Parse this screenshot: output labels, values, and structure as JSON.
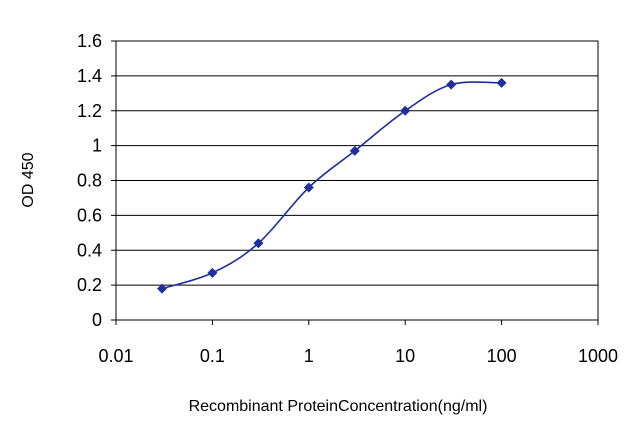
{
  "chart_data": {
    "type": "line",
    "title": "",
    "xlabel": "Recombinant ProteinConcentration(ng/ml)",
    "ylabel": "OD 450",
    "x_scale": "log",
    "xlim": [
      0.01,
      1000
    ],
    "ylim": [
      0,
      1.6
    ],
    "x_ticks": [
      0.01,
      0.1,
      1,
      10,
      100,
      1000
    ],
    "x_tick_labels": [
      "0.01",
      "0.1",
      "1",
      "10",
      "100",
      "1000"
    ],
    "y_ticks": [
      0,
      0.2,
      0.4,
      0.6,
      0.8,
      1,
      1.2,
      1.4,
      1.6
    ],
    "y_tick_labels": [
      "0",
      "0.2",
      "0.4",
      "0.6",
      "0.8",
      "1",
      "1.2",
      "1.4",
      "1.6"
    ],
    "grid": "horizontal",
    "legend": "none",
    "series": [
      {
        "x": [
          0.03,
          0.1,
          0.3,
          1,
          3,
          10,
          30,
          100
        ],
        "values": [
          0.18,
          0.27,
          0.44,
          0.76,
          0.97,
          1.2,
          1.35,
          1.36
        ],
        "color": "#1f2fa0",
        "marker": "diamond"
      }
    ]
  }
}
